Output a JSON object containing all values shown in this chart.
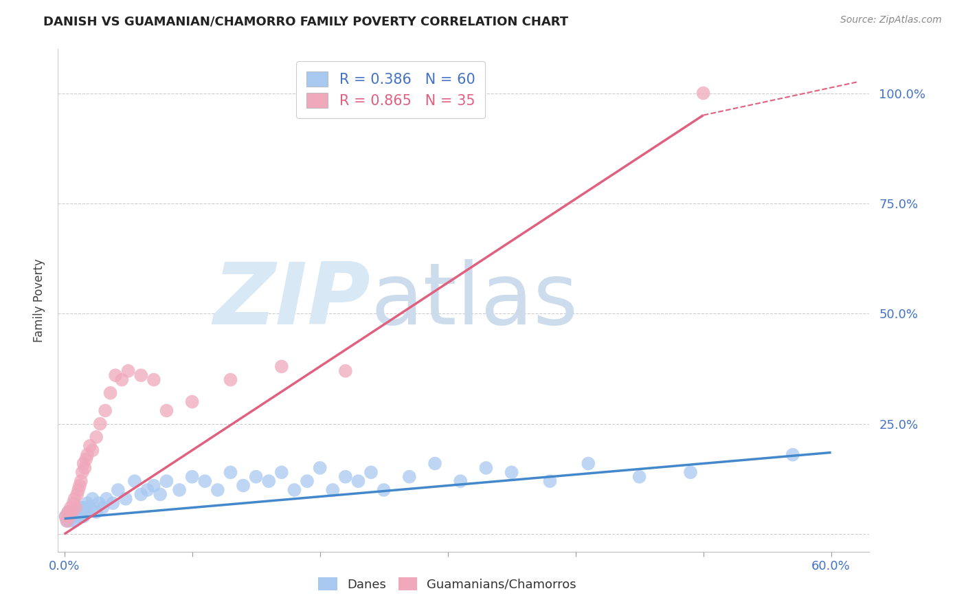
{
  "title": "DANISH VS GUAMANIAN/CHAMORRO FAMILY POVERTY CORRELATION CHART",
  "source": "Source: ZipAtlas.com",
  "ylabel": "Family Poverty",
  "xlim": [
    -0.005,
    0.63
  ],
  "ylim": [
    -0.04,
    1.1
  ],
  "legend_danish": "R = 0.386   N = 60",
  "legend_guamanian": "R = 0.865   N = 35",
  "blue_color": "#a8c8f0",
  "pink_color": "#f0a8bb",
  "blue_line_color": "#4488cc",
  "pink_line_color": "#e06080",
  "title_fontsize": 13,
  "source_fontsize": 10,
  "danish_x": [
    0.001,
    0.002,
    0.003,
    0.004,
    0.005,
    0.006,
    0.007,
    0.008,
    0.009,
    0.01,
    0.011,
    0.012,
    0.013,
    0.014,
    0.015,
    0.016,
    0.017,
    0.018,
    0.02,
    0.022,
    0.025,
    0.027,
    0.03,
    0.033,
    0.038,
    0.042,
    0.048,
    0.055,
    0.06,
    0.065,
    0.07,
    0.075,
    0.08,
    0.09,
    0.1,
    0.11,
    0.12,
    0.13,
    0.14,
    0.15,
    0.16,
    0.17,
    0.18,
    0.19,
    0.2,
    0.21,
    0.22,
    0.23,
    0.24,
    0.25,
    0.27,
    0.29,
    0.31,
    0.33,
    0.35,
    0.38,
    0.41,
    0.45,
    0.49,
    0.57
  ],
  "danish_y": [
    0.04,
    0.03,
    0.05,
    0.03,
    0.04,
    0.05,
    0.04,
    0.03,
    0.05,
    0.04,
    0.05,
    0.04,
    0.06,
    0.05,
    0.04,
    0.06,
    0.05,
    0.07,
    0.06,
    0.08,
    0.05,
    0.07,
    0.06,
    0.08,
    0.07,
    0.1,
    0.08,
    0.12,
    0.09,
    0.1,
    0.11,
    0.09,
    0.12,
    0.1,
    0.13,
    0.12,
    0.1,
    0.14,
    0.11,
    0.13,
    0.12,
    0.14,
    0.1,
    0.12,
    0.15,
    0.1,
    0.13,
    0.12,
    0.14,
    0.1,
    0.13,
    0.16,
    0.12,
    0.15,
    0.14,
    0.12,
    0.16,
    0.13,
    0.14,
    0.18
  ],
  "guamanian_x": [
    0.001,
    0.002,
    0.003,
    0.004,
    0.005,
    0.006,
    0.007,
    0.008,
    0.009,
    0.01,
    0.011,
    0.012,
    0.013,
    0.014,
    0.015,
    0.016,
    0.017,
    0.018,
    0.02,
    0.022,
    0.025,
    0.028,
    0.032,
    0.036,
    0.04,
    0.045,
    0.05,
    0.06,
    0.07,
    0.08,
    0.1,
    0.13,
    0.17,
    0.22,
    0.5
  ],
  "guamanian_y": [
    0.04,
    0.03,
    0.05,
    0.04,
    0.06,
    0.05,
    0.07,
    0.08,
    0.06,
    0.09,
    0.1,
    0.11,
    0.12,
    0.14,
    0.16,
    0.15,
    0.17,
    0.18,
    0.2,
    0.19,
    0.22,
    0.25,
    0.28,
    0.32,
    0.36,
    0.35,
    0.37,
    0.36,
    0.35,
    0.28,
    0.3,
    0.35,
    0.38,
    0.37,
    1.0
  ],
  "blue_line": {
    "x0": 0.0,
    "y0": 0.035,
    "x1": 0.6,
    "y1": 0.185
  },
  "pink_line_solid": {
    "x0": 0.0,
    "y0": 0.0,
    "x1": 0.5,
    "y1": 0.95
  },
  "pink_line_dash": {
    "x0": 0.5,
    "y0": 0.95,
    "x1": 0.62,
    "y1": 1.025
  }
}
